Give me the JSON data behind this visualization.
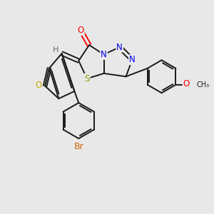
{
  "bg_color": "#e8e8e8",
  "bond_color": "#1a1a1a",
  "atom_colors": {
    "O": "#ff0000",
    "O_furan": "#ccaa00",
    "N": "#0000ee",
    "S": "#999900",
    "Br": "#cc6600",
    "H": "#666666",
    "C": "#1a1a1a"
  },
  "font_size": 8.5,
  "lw": 1.4
}
